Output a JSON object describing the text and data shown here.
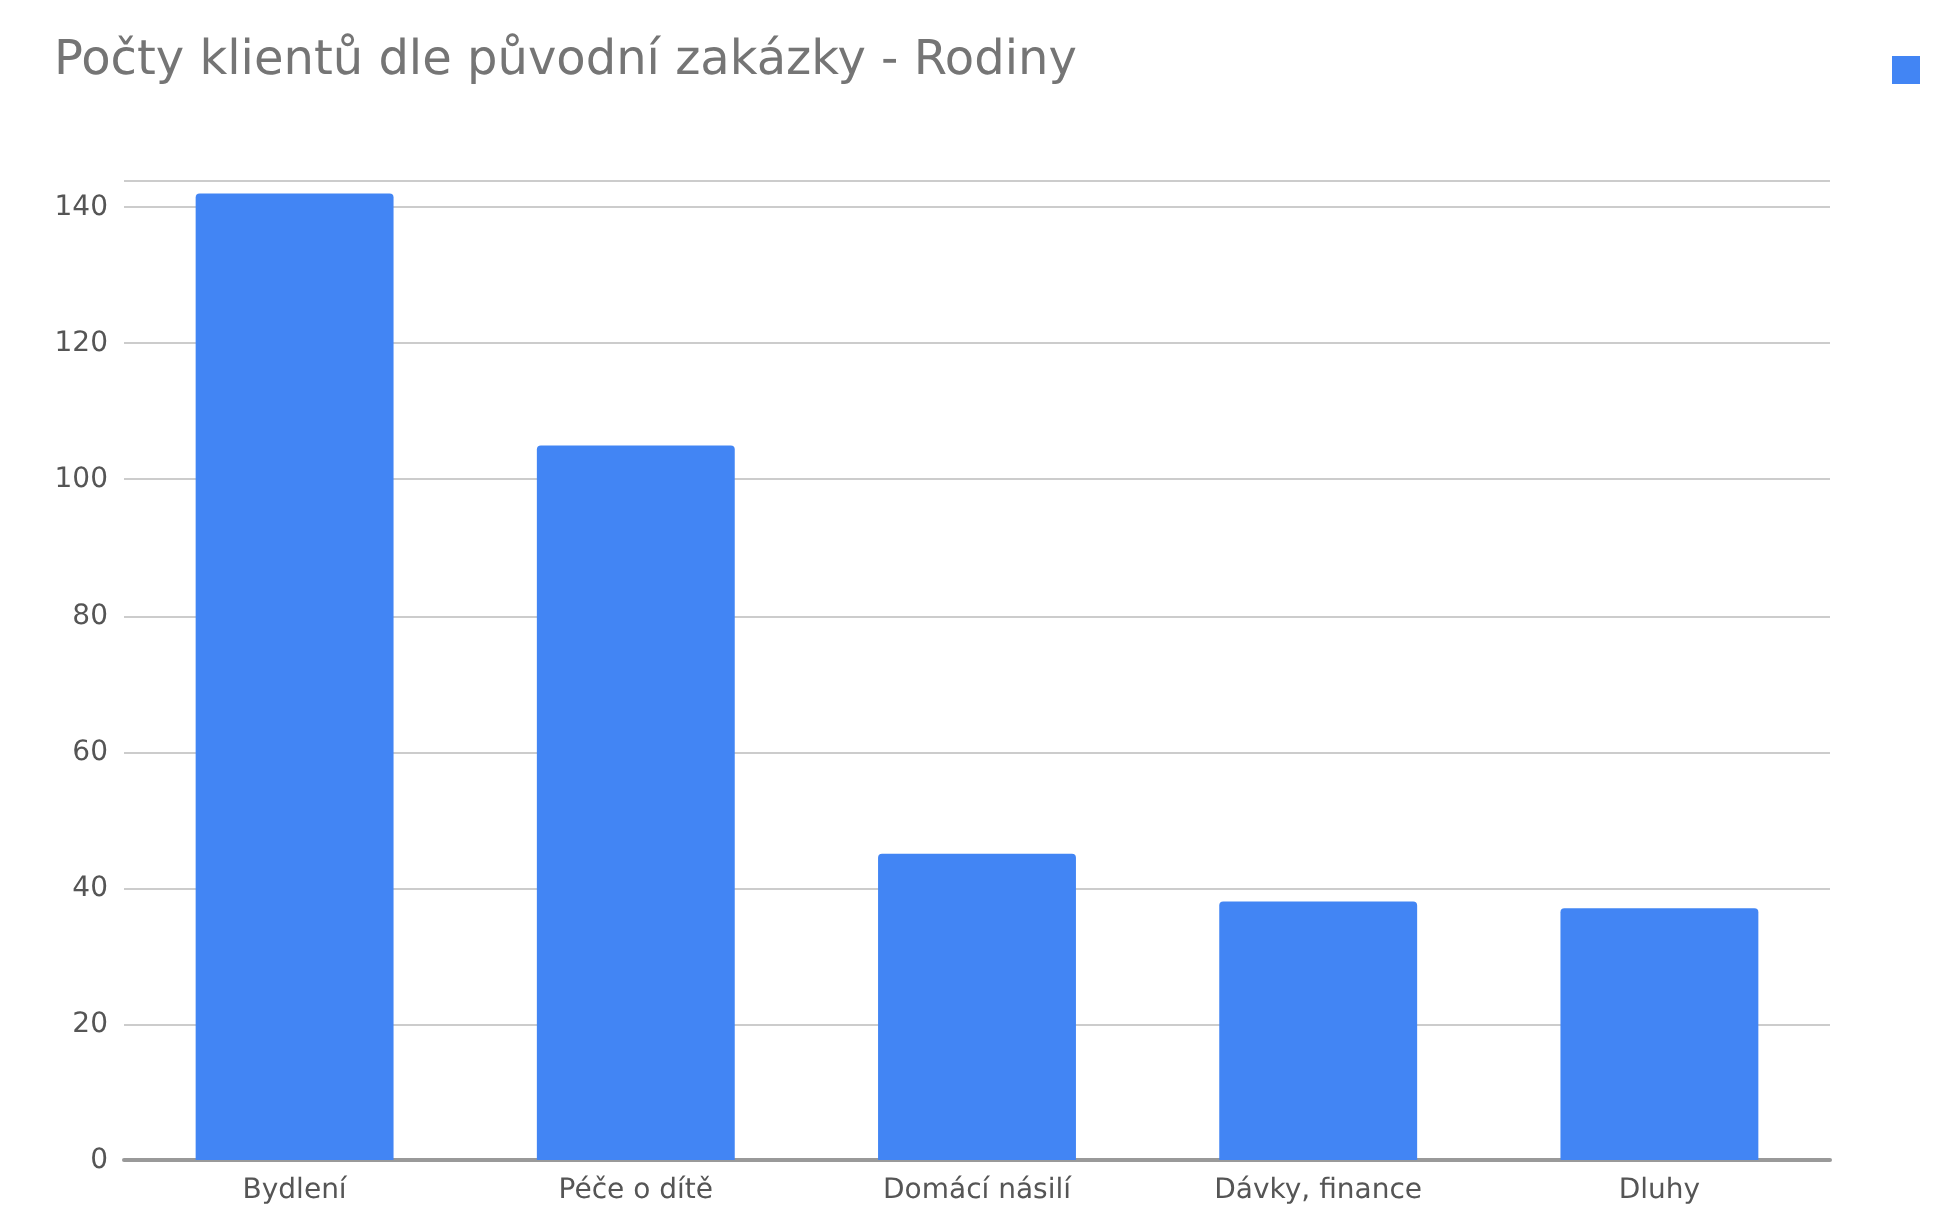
{
  "chart_data": {
    "type": "bar",
    "title": "Počty klientů dle původní zakázky - Rodiny",
    "categories": [
      "Bydlení",
      "Péče o dítě",
      "Domácí násilí",
      "Dávky, finance",
      "Dluhy"
    ],
    "series": [
      {
        "color": "#4285f4",
        "values": [
          142,
          105,
          45,
          38,
          37
        ]
      }
    ],
    "ylim": [
      0,
      144
    ],
    "yticks": [
      0,
      20,
      40,
      60,
      80,
      100,
      120,
      140,
      {
        "value": 144,
        "label": null
      }
    ],
    "grid": "y"
  }
}
